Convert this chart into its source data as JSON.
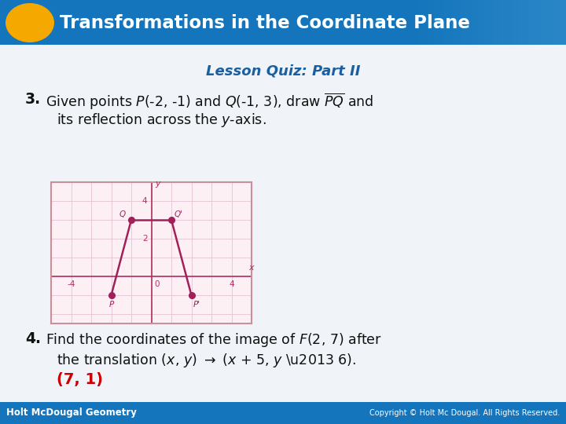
{
  "title_text": "Transformations in the Coordinate Plane",
  "subtitle_text": "Lesson Quiz: Part II",
  "header_bg_color": "#1475bc",
  "header_text_color": "#ffffff",
  "oval_color": "#f5a800",
  "body_bg_color": "#e8f0f8",
  "q3_label": "3.",
  "q4_label": "4.",
  "graph_border_color": "#c8909a",
  "graph_line_color": "#a0205a",
  "graph_bg_color": "#fdf0f5",
  "grid_color": "#e8c8d8",
  "axis_color": "#b03060",
  "point_color": "#a0205a",
  "P": [
    -2,
    -1
  ],
  "Q": [
    -1,
    3
  ],
  "P_prime": [
    2,
    -1
  ],
  "Q_prime": [
    1,
    3
  ],
  "xtick_labels": [
    "-4",
    "0",
    "4"
  ],
  "xtick_vals": [
    -4,
    0,
    4
  ],
  "ytick_labels": [
    "2",
    "4"
  ],
  "ytick_vals": [
    2,
    4
  ],
  "q4_answer": "(7, 1)",
  "q4_answer_color": "#cc0000",
  "footer_left": "Holt McDougal Geometry",
  "footer_right": "Copyright © Holt Mc Dougal. All Rights Reserved.",
  "footer_bg_color": "#1475bc",
  "footer_text_color": "#ffffff",
  "subtitle_color": "#1a5fa0",
  "text_color": "#111111"
}
